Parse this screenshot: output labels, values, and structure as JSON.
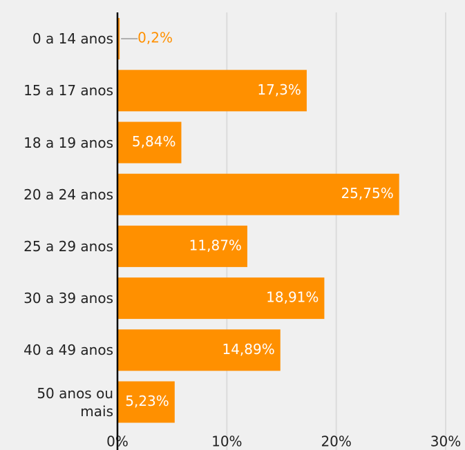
{
  "chart_data": {
    "type": "bar",
    "orientation": "horizontal",
    "categories": [
      "0 a 14 anos",
      "15 a 17 anos",
      "18 a 19 anos",
      "20 a 24 anos",
      "25 a 29 anos",
      "30 a 39 anos",
      "40 a 49 anos",
      "50 anos ou mais"
    ],
    "values": [
      0.2,
      17.3,
      5.84,
      25.75,
      11.87,
      18.91,
      14.89,
      5.23
    ],
    "value_labels": [
      "0,2%",
      "17,3%",
      "5,84%",
      "25,75%",
      "11,87%",
      "18,91%",
      "14,89%",
      "5,23%"
    ],
    "color": "#ff9000",
    "xlim": [
      0,
      30
    ],
    "xticks": [
      {
        "value": 0,
        "label": "0%"
      },
      {
        "value": 10,
        "label": "10%"
      },
      {
        "value": 20,
        "label": "20%"
      },
      {
        "value": 30,
        "label": "30%"
      }
    ],
    "grid": true
  }
}
